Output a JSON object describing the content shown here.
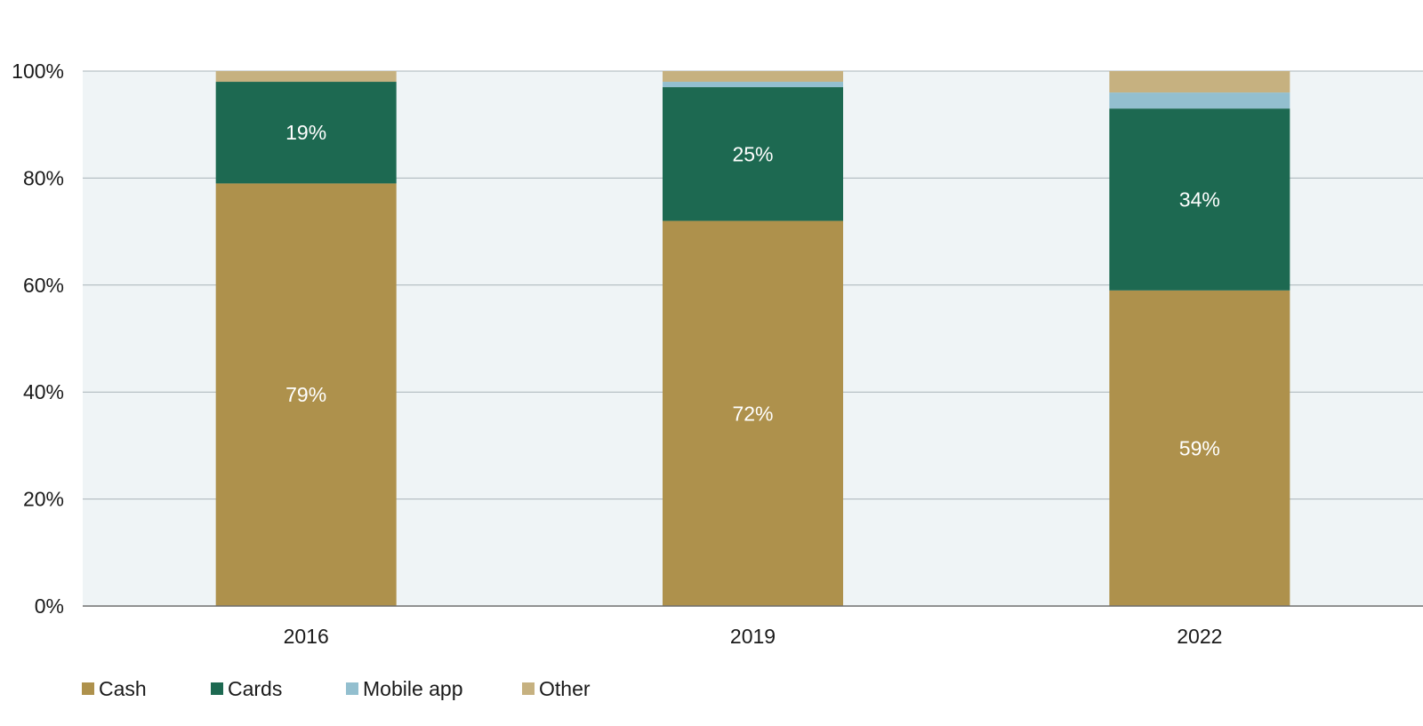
{
  "chart_data": {
    "type": "bar",
    "stacked": true,
    "categories": [
      "2016",
      "2019",
      "2022"
    ],
    "series": [
      {
        "name": "Cash",
        "color": "#ae914c",
        "values": [
          79,
          72,
          59
        ],
        "labels": [
          "79%",
          "72%",
          "59%"
        ]
      },
      {
        "name": "Cards",
        "color": "#1d6951",
        "values": [
          19,
          25,
          34
        ],
        "labels": [
          "19%",
          "25%",
          "34%"
        ]
      },
      {
        "name": "Mobile app",
        "color": "#93bfcf",
        "values": [
          0,
          1,
          3
        ],
        "labels": [
          "",
          "",
          ""
        ]
      },
      {
        "name": "Other",
        "color": "#c6b180",
        "values": [
          2,
          2,
          4
        ],
        "labels": [
          "",
          "",
          ""
        ]
      }
    ],
    "ylim": [
      0,
      100
    ],
    "yticks": [
      0,
      20,
      40,
      60,
      80,
      100
    ],
    "ytick_labels": [
      "0%",
      "20%",
      "40%",
      "60%",
      "80%",
      "100%"
    ],
    "grid": true,
    "plot_background": "#eff4f6",
    "legend_position": "bottom-left"
  }
}
